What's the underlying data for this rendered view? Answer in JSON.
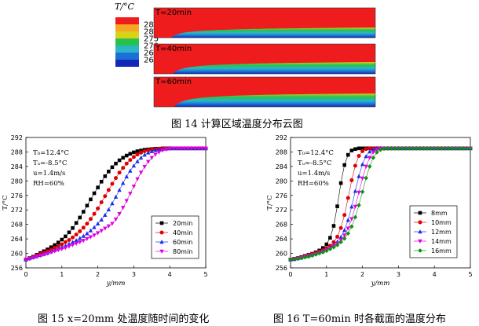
{
  "figure14": {
    "caption": "图 14  计算区域温度分布云图",
    "legend_title": "T/°C",
    "legend_levels": [
      "285",
      "280",
      "275",
      "270",
      "265",
      "260"
    ],
    "panels": [
      "T=20min",
      "T=40min",
      "T=60min"
    ],
    "colors": {
      "hot": "#ee1c1c",
      "scale": [
        "#ee1c1c",
        "#f5a623",
        "#d9d21a",
        "#27c24c",
        "#2ab6c8",
        "#1a6fd8",
        "#1428b8"
      ]
    }
  },
  "figure15": {
    "caption": "图 15 x=20mm  处温度随时间的变化",
    "params": [
      "T₀=12.4°C",
      "Tᵤ=-8.5°C",
      "u=1.4m/s",
      "RH=60%"
    ]
  },
  "figure16": {
    "caption": "图 16 T=60min 时各截面的温度分布",
    "params": [
      "T₀=12.4°C",
      "Tᵤ=-8.5°C",
      "u=1.4m/s",
      "RH=60%"
    ]
  },
  "chart_data": [
    {
      "type": "line",
      "xlabel": "y/mm",
      "ylabel": "T/°C",
      "xlim": [
        0,
        5
      ],
      "ylim": [
        256,
        292
      ],
      "xticks": [
        0,
        1,
        2,
        3,
        4,
        5
      ],
      "yticks": [
        256,
        260,
        264,
        268,
        272,
        276,
        280,
        284,
        288,
        292
      ],
      "legend_position": "bottom-right",
      "series": [
        {
          "name": "20min",
          "color": "#000000",
          "marker": "square",
          "x": [
            0,
            0.1,
            0.2,
            0.3,
            0.4,
            0.5,
            0.6,
            0.7,
            0.8,
            0.9,
            1.0,
            1.1,
            1.2,
            1.3,
            1.4,
            1.5,
            1.6,
            1.7,
            1.8,
            1.9,
            2.0,
            2.1,
            2.2,
            2.3,
            2.4,
            2.5,
            2.6,
            2.7,
            2.8,
            2.9,
            3.0,
            3.1,
            3.2,
            3.3,
            3.4,
            3.5,
            3.6,
            3.7,
            3.8,
            3.9,
            4.0,
            4.1,
            4.2,
            4.3,
            4.4,
            4.5,
            4.6,
            4.7,
            4.8,
            4.9,
            5.0
          ],
          "y": [
            258.3,
            258.7,
            259.1,
            259.6,
            260.1,
            260.6,
            261.1,
            261.7,
            262.3,
            263.0,
            263.8,
            264.7,
            265.8,
            267.0,
            268.4,
            269.9,
            271.5,
            273.2,
            274.9,
            276.6,
            278.2,
            279.8,
            281.3,
            282.6,
            283.8,
            284.8,
            285.7,
            286.4,
            287.0,
            287.5,
            287.9,
            288.2,
            288.4,
            288.6,
            288.7,
            288.8,
            288.9,
            288.9,
            289.0,
            289.0,
            289.0,
            289.0,
            289.0,
            289.0,
            289.0,
            289.0,
            289.0,
            289.0,
            289.0,
            289.0,
            289.0
          ]
        },
        {
          "name": "40min",
          "color": "#e00000",
          "marker": "circle",
          "x": [
            0,
            0.1,
            0.2,
            0.3,
            0.4,
            0.5,
            0.6,
            0.7,
            0.8,
            0.9,
            1.0,
            1.1,
            1.2,
            1.3,
            1.4,
            1.5,
            1.6,
            1.7,
            1.8,
            1.9,
            2.0,
            2.1,
            2.2,
            2.3,
            2.4,
            2.5,
            2.6,
            2.7,
            2.8,
            2.9,
            3.0,
            3.1,
            3.2,
            3.3,
            3.4,
            3.5,
            3.6,
            3.7,
            3.8,
            3.9,
            4.0,
            4.1,
            4.2,
            4.3,
            4.4,
            4.5,
            4.6,
            4.7,
            4.8,
            4.9,
            5.0
          ],
          "y": [
            258.3,
            258.6,
            259.0,
            259.4,
            259.8,
            260.2,
            260.6,
            261.0,
            261.5,
            262.0,
            262.5,
            263.1,
            263.7,
            264.4,
            265.2,
            266.1,
            267.1,
            268.2,
            269.5,
            270.9,
            272.4,
            274.1,
            275.8,
            277.5,
            279.2,
            280.8,
            282.3,
            283.6,
            284.8,
            285.8,
            286.6,
            287.3,
            287.8,
            288.2,
            288.5,
            288.7,
            288.8,
            288.9,
            289.0,
            289.0,
            289.0,
            289.0,
            289.0,
            289.0,
            289.0,
            289.0,
            289.0,
            289.0,
            289.0,
            289.0,
            289.0
          ]
        },
        {
          "name": "60min",
          "color": "#1a2ee8",
          "marker": "triangle-up",
          "x": [
            0,
            0.1,
            0.2,
            0.3,
            0.4,
            0.5,
            0.6,
            0.7,
            0.8,
            0.9,
            1.0,
            1.1,
            1.2,
            1.3,
            1.4,
            1.5,
            1.6,
            1.7,
            1.8,
            1.9,
            2.0,
            2.1,
            2.2,
            2.3,
            2.4,
            2.5,
            2.6,
            2.7,
            2.8,
            2.9,
            3.0,
            3.1,
            3.2,
            3.3,
            3.4,
            3.5,
            3.6,
            3.7,
            3.8,
            3.9,
            4.0,
            4.1,
            4.2,
            4.3,
            4.4,
            4.5,
            4.6,
            4.7,
            4.8,
            4.9,
            5.0
          ],
          "y": [
            258.3,
            258.6,
            258.9,
            259.2,
            259.5,
            259.8,
            260.1,
            260.5,
            260.9,
            261.3,
            261.7,
            262.1,
            262.6,
            263.1,
            263.6,
            264.2,
            264.8,
            265.5,
            266.3,
            267.2,
            268.2,
            269.3,
            270.6,
            272.1,
            273.8,
            275.6,
            277.5,
            279.4,
            281.2,
            282.8,
            284.2,
            285.4,
            286.4,
            287.2,
            287.8,
            288.2,
            288.5,
            288.7,
            288.8,
            288.9,
            289.0,
            289.0,
            289.0,
            289.0,
            289.0,
            289.0,
            289.0,
            289.0,
            289.0,
            289.0,
            289.0
          ]
        },
        {
          "name": "80min",
          "color": "#e000e0",
          "marker": "triangle-down",
          "x": [
            0,
            0.1,
            0.2,
            0.3,
            0.4,
            0.5,
            0.6,
            0.7,
            0.8,
            0.9,
            1.0,
            1.1,
            1.2,
            1.3,
            1.4,
            1.5,
            1.6,
            1.7,
            1.8,
            1.9,
            2.0,
            2.1,
            2.2,
            2.3,
            2.4,
            2.5,
            2.6,
            2.7,
            2.8,
            2.9,
            3.0,
            3.1,
            3.2,
            3.3,
            3.4,
            3.5,
            3.6,
            3.7,
            3.8,
            3.9,
            4.0,
            4.1,
            4.2,
            4.3,
            4.4,
            4.5,
            4.6,
            4.7,
            4.8,
            4.9,
            5.0
          ],
          "y": [
            258.3,
            258.5,
            258.8,
            259.1,
            259.4,
            259.7,
            260.0,
            260.3,
            260.6,
            260.9,
            261.2,
            261.5,
            261.9,
            262.3,
            262.7,
            263.1,
            263.5,
            264.0,
            264.5,
            265.0,
            265.6,
            266.2,
            266.9,
            267.5,
            268.2,
            269.4,
            270.9,
            272.6,
            274.5,
            276.5,
            278.5,
            280.5,
            282.3,
            283.9,
            285.3,
            286.4,
            287.3,
            287.9,
            288.4,
            288.7,
            288.9,
            289.0,
            289.0,
            289.0,
            289.0,
            289.0,
            289.0,
            289.0,
            289.0,
            289.0,
            289.0
          ]
        }
      ]
    },
    {
      "type": "line",
      "xlabel": "y/mm",
      "ylabel": "T/°C",
      "xlim": [
        0,
        5
      ],
      "ylim": [
        256,
        292
      ],
      "xticks": [
        0,
        1,
        2,
        3,
        4,
        5
      ],
      "yticks": [
        256,
        260,
        264,
        268,
        272,
        276,
        280,
        284,
        288,
        292
      ],
      "legend_position": "bottom-right",
      "series": [
        {
          "name": "8mm",
          "color": "#000000",
          "marker": "square",
          "x": [
            0,
            0.1,
            0.2,
            0.3,
            0.4,
            0.5,
            0.6,
            0.7,
            0.8,
            0.9,
            1.0,
            1.1,
            1.2,
            1.3,
            1.4,
            1.5,
            1.6,
            1.7,
            1.8,
            1.9,
            2.0,
            2.1,
            2.2,
            2.3,
            2.4,
            2.5,
            2.6,
            2.7,
            2.8,
            2.9,
            3.0,
            3.1,
            3.2,
            3.3,
            3.4,
            3.5,
            3.6,
            3.7,
            3.8,
            3.9,
            4.0,
            4.1,
            4.2,
            4.3,
            4.4,
            4.5,
            4.6,
            4.7,
            4.8,
            4.9,
            5.0
          ],
          "y": [
            258.3,
            258.5,
            258.7,
            259.0,
            259.3,
            259.6,
            259.9,
            260.3,
            260.8,
            261.5,
            262.5,
            264.3,
            267.6,
            273.0,
            279.4,
            284.4,
            287.2,
            288.4,
            288.8,
            289.0,
            289.0,
            289.0,
            289.0,
            289.0,
            289.0,
            289.0,
            289.0,
            289.0,
            289.0,
            289.0,
            289.0,
            289.0,
            289.0,
            289.0,
            289.0,
            289.0,
            289.0,
            289.0,
            289.0,
            289.0,
            289.0,
            289.0,
            289.0,
            289.0,
            289.0,
            289.0,
            289.0,
            289.0,
            289.0,
            289.0,
            289.0
          ]
        },
        {
          "name": "10mm",
          "color": "#e00000",
          "marker": "circle",
          "x": [
            0,
            0.1,
            0.2,
            0.3,
            0.4,
            0.5,
            0.6,
            0.7,
            0.8,
            0.9,
            1.0,
            1.1,
            1.2,
            1.3,
            1.4,
            1.5,
            1.6,
            1.7,
            1.8,
            1.9,
            2.0,
            2.1,
            2.2,
            2.3,
            2.4,
            2.5,
            2.6,
            2.7,
            2.8,
            2.9,
            3.0,
            3.1,
            3.2,
            3.3,
            3.4,
            3.5,
            3.6,
            3.7,
            3.8,
            3.9,
            4.0,
            4.1,
            4.2,
            4.3,
            4.4,
            4.5,
            4.6,
            4.7,
            4.8,
            4.9,
            5.0
          ],
          "y": [
            258.3,
            258.5,
            258.7,
            258.9,
            259.2,
            259.5,
            259.8,
            260.1,
            260.5,
            260.9,
            261.4,
            262.1,
            263.1,
            264.6,
            267.0,
            270.6,
            275.3,
            280.2,
            284.2,
            286.9,
            288.2,
            288.8,
            289.0,
            289.0,
            289.0,
            289.0,
            289.0,
            289.0,
            289.0,
            289.0,
            289.0,
            289.0,
            289.0,
            289.0,
            289.0,
            289.0,
            289.0,
            289.0,
            289.0,
            289.0,
            289.0,
            289.0,
            289.0,
            289.0,
            289.0,
            289.0,
            289.0,
            289.0,
            289.0,
            289.0,
            289.0
          ]
        },
        {
          "name": "12mm",
          "color": "#1a2ee8",
          "marker": "triangle-up",
          "x": [
            0,
            0.1,
            0.2,
            0.3,
            0.4,
            0.5,
            0.6,
            0.7,
            0.8,
            0.9,
            1.0,
            1.1,
            1.2,
            1.3,
            1.4,
            1.5,
            1.6,
            1.7,
            1.8,
            1.9,
            2.0,
            2.1,
            2.2,
            2.3,
            2.4,
            2.5,
            2.6,
            2.7,
            2.8,
            2.9,
            3.0,
            3.1,
            3.2,
            3.3,
            3.4,
            3.5,
            3.6,
            3.7,
            3.8,
            3.9,
            4.0,
            4.1,
            4.2,
            4.3,
            4.4,
            4.5,
            4.6,
            4.7,
            4.8,
            4.9,
            5.0
          ],
          "y": [
            258.3,
            258.4,
            258.6,
            258.8,
            259.1,
            259.3,
            259.6,
            259.9,
            260.3,
            260.7,
            261.1,
            261.6,
            262.3,
            263.2,
            264.5,
            266.4,
            269.2,
            272.9,
            277.2,
            281.3,
            284.6,
            286.8,
            288.1,
            288.7,
            289.0,
            289.0,
            289.0,
            289.0,
            289.0,
            289.0,
            289.0,
            289.0,
            289.0,
            289.0,
            289.0,
            289.0,
            289.0,
            289.0,
            289.0,
            289.0,
            289.0,
            289.0,
            289.0,
            289.0,
            289.0,
            289.0,
            289.0,
            289.0,
            289.0,
            289.0,
            289.0
          ]
        },
        {
          "name": "14mm",
          "color": "#e000e0",
          "marker": "triangle-down",
          "x": [
            0,
            0.1,
            0.2,
            0.3,
            0.4,
            0.5,
            0.6,
            0.7,
            0.8,
            0.9,
            1.0,
            1.1,
            1.2,
            1.3,
            1.4,
            1.5,
            1.6,
            1.7,
            1.8,
            1.9,
            2.0,
            2.1,
            2.2,
            2.3,
            2.4,
            2.5,
            2.6,
            2.7,
            2.8,
            2.9,
            3.0,
            3.1,
            3.2,
            3.3,
            3.4,
            3.5,
            3.6,
            3.7,
            3.8,
            3.9,
            4.0,
            4.1,
            4.2,
            4.3,
            4.4,
            4.5,
            4.6,
            4.7,
            4.8,
            4.9,
            5.0
          ],
          "y": [
            258.3,
            258.4,
            258.6,
            258.8,
            259.0,
            259.2,
            259.5,
            259.8,
            260.1,
            260.5,
            260.9,
            261.4,
            262.0,
            262.7,
            263.7,
            265.0,
            266.9,
            269.5,
            272.9,
            276.8,
            280.7,
            284.0,
            286.4,
            287.9,
            288.6,
            288.9,
            289.0,
            289.0,
            289.0,
            289.0,
            289.0,
            289.0,
            289.0,
            289.0,
            289.0,
            289.0,
            289.0,
            289.0,
            289.0,
            289.0,
            289.0,
            289.0,
            289.0,
            289.0,
            289.0,
            289.0,
            289.0,
            289.0,
            289.0,
            289.0,
            289.0
          ]
        },
        {
          "name": "16mm",
          "color": "#109010",
          "marker": "diamond",
          "x": [
            0,
            0.1,
            0.2,
            0.3,
            0.4,
            0.5,
            0.6,
            0.7,
            0.8,
            0.9,
            1.0,
            1.1,
            1.2,
            1.3,
            1.4,
            1.5,
            1.6,
            1.7,
            1.8,
            1.9,
            2.0,
            2.1,
            2.2,
            2.3,
            2.4,
            2.5,
            2.6,
            2.7,
            2.8,
            2.9,
            3.0,
            3.1,
            3.2,
            3.3,
            3.4,
            3.5,
            3.6,
            3.7,
            3.8,
            3.9,
            4.0,
            4.1,
            4.2,
            4.3,
            4.4,
            4.5,
            4.6,
            4.7,
            4.8,
            4.9,
            5.0
          ],
          "y": [
            258.3,
            258.4,
            258.5,
            258.7,
            258.9,
            259.1,
            259.4,
            259.7,
            260.0,
            260.3,
            260.7,
            261.2,
            261.7,
            262.3,
            263.1,
            264.1,
            265.5,
            267.4,
            270.0,
            273.3,
            277.0,
            280.8,
            284.0,
            286.4,
            287.9,
            288.6,
            288.9,
            289.0,
            289.0,
            289.0,
            289.0,
            289.0,
            289.0,
            289.0,
            289.0,
            289.0,
            289.0,
            289.0,
            289.0,
            289.0,
            289.0,
            289.0,
            289.0,
            289.0,
            289.0,
            289.0,
            289.0,
            289.0,
            289.0,
            289.0,
            289.0
          ]
        }
      ]
    }
  ]
}
